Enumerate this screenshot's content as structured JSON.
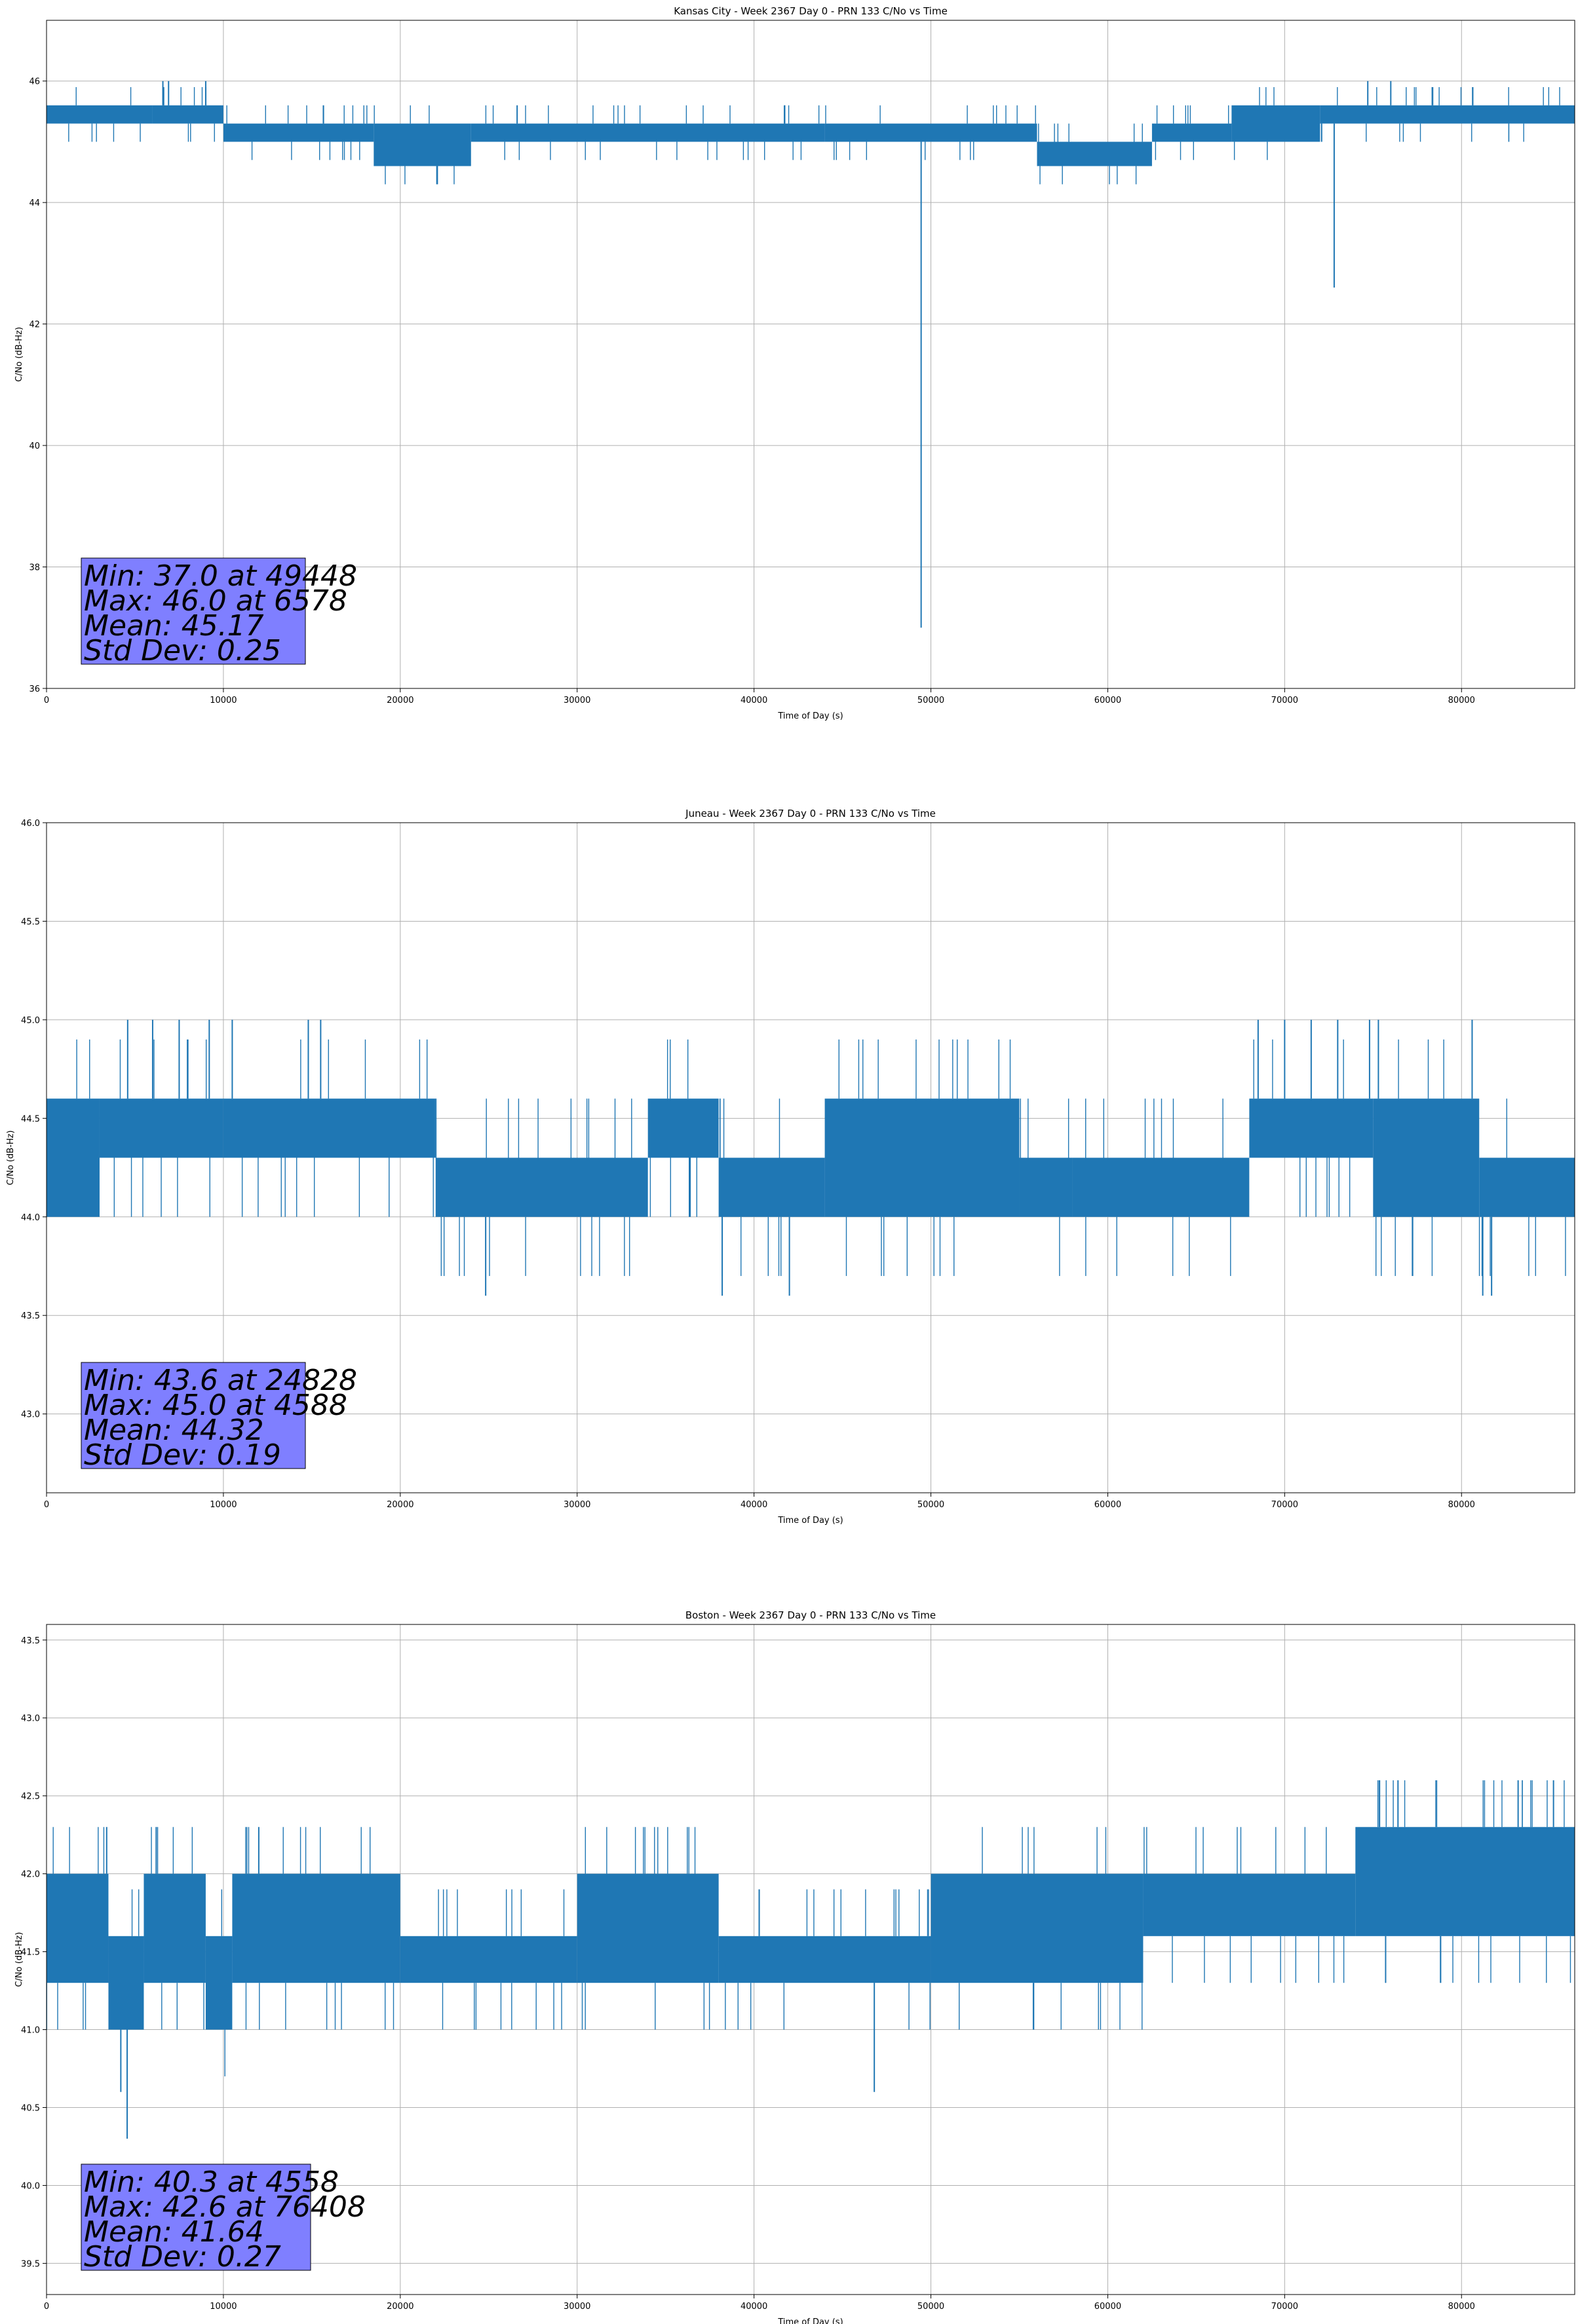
{
  "chart_data": [
    {
      "type": "line",
      "title": "Kansas City - Week 2367 Day 0 - PRN 133 C/No vs Time",
      "xlabel": "Time of Day (s)",
      "ylabel": "C/No (dB-Hz)",
      "xlim": [
        0,
        86400
      ],
      "ylim": [
        36,
        47
      ],
      "xticks": [
        0,
        10000,
        20000,
        30000,
        40000,
        50000,
        60000,
        70000,
        80000
      ],
      "yticks": [
        36,
        38,
        40,
        42,
        44,
        46
      ],
      "grid": true,
      "series_color": "#1f77b4",
      "series": [
        {
          "segments": [
            {
              "x": [
                0,
                6000
              ],
              "low": 45.3,
              "high": 45.6
            },
            {
              "x": [
                6000,
                10000
              ],
              "low": 45.3,
              "high": 45.6
            },
            {
              "x": [
                10000,
                18500
              ],
              "low": 45.0,
              "high": 45.3
            },
            {
              "x": [
                18500,
                24000
              ],
              "low": 44.6,
              "high": 45.3
            },
            {
              "x": [
                24000,
                44000
              ],
              "low": 45.0,
              "high": 45.3
            },
            {
              "x": [
                44000,
                56000
              ],
              "low": 45.0,
              "high": 45.3
            },
            {
              "x": [
                56000,
                62500
              ],
              "low": 44.6,
              "high": 45.0
            },
            {
              "x": [
                62500,
                67000
              ],
              "low": 45.0,
              "high": 45.3
            },
            {
              "x": [
                67000,
                72000
              ],
              "low": 45.0,
              "high": 45.6
            },
            {
              "x": [
                72000,
                86400
              ],
              "low": 45.3,
              "high": 45.6
            }
          ],
          "spikes": [
            {
              "x": 6578,
              "y": 46.0
            },
            {
              "x": 6900,
              "y": 46.0
            },
            {
              "x": 9000,
              "y": 46.0
            },
            {
              "x": 49448,
              "y": 37.0
            },
            {
              "x": 72800,
              "y": 42.6
            },
            {
              "x": 74700,
              "y": 46.0
            },
            {
              "x": 76000,
              "y": 46.0
            }
          ],
          "stats": {
            "min": {
              "value": 37.0,
              "at": 49448
            },
            "max": {
              "value": 46.0,
              "at": 6578
            },
            "mean": 45.17,
            "std": 0.25
          }
        }
      ],
      "stats_box": {
        "lines": [
          "Min: 37.0 at 49448",
          "Max: 46.0 at 6578",
          "Mean: 45.17",
          "Std Dev: 0.25"
        ],
        "color": "#7f7fff"
      }
    },
    {
      "type": "line",
      "title": "Juneau - Week 2367 Day 0 - PRN 133 C/No vs Time",
      "xlabel": "Time of Day (s)",
      "ylabel": "C/No (dB-Hz)",
      "xlim": [
        0,
        86400
      ],
      "ylim": [
        42.6,
        46.0
      ],
      "xticks": [
        0,
        10000,
        20000,
        30000,
        40000,
        50000,
        60000,
        70000,
        80000
      ],
      "yticks": [
        43.0,
        43.5,
        44.0,
        44.5,
        45.0,
        45.5,
        46.0
      ],
      "grid": true,
      "series_color": "#1f77b4",
      "series": [
        {
          "segments": [
            {
              "x": [
                0,
                3000
              ],
              "low": 44.0,
              "high": 44.6
            },
            {
              "x": [
                3000,
                10000
              ],
              "low": 44.3,
              "high": 44.6
            },
            {
              "x": [
                10000,
                22000
              ],
              "low": 44.3,
              "high": 44.6
            },
            {
              "x": [
                22000,
                34000
              ],
              "low": 44.0,
              "high": 44.3
            },
            {
              "x": [
                34000,
                38000
              ],
              "low": 44.3,
              "high": 44.6
            },
            {
              "x": [
                38000,
                44000
              ],
              "low": 44.0,
              "high": 44.3
            },
            {
              "x": [
                44000,
                55000
              ],
              "low": 44.0,
              "high": 44.6
            },
            {
              "x": [
                55000,
                58000
              ],
              "low": 44.0,
              "high": 44.3
            },
            {
              "x": [
                58000,
                68000
              ],
              "low": 44.0,
              "high": 44.3
            },
            {
              "x": [
                68000,
                75000
              ],
              "low": 44.3,
              "high": 44.6
            },
            {
              "x": [
                75000,
                81000
              ],
              "low": 44.0,
              "high": 44.6
            },
            {
              "x": [
                81000,
                86400
              ],
              "low": 44.0,
              "high": 44.3
            }
          ],
          "spikes": [
            {
              "x": 4588,
              "y": 45.0
            },
            {
              "x": 6000,
              "y": 45.0
            },
            {
              "x": 7500,
              "y": 45.0
            },
            {
              "x": 9200,
              "y": 45.0
            },
            {
              "x": 10500,
              "y": 45.0
            },
            {
              "x": 14800,
              "y": 45.0
            },
            {
              "x": 15500,
              "y": 45.0
            },
            {
              "x": 24828,
              "y": 43.6
            },
            {
              "x": 38200,
              "y": 43.6
            },
            {
              "x": 42000,
              "y": 43.6
            },
            {
              "x": 68500,
              "y": 45.0
            },
            {
              "x": 70000,
              "y": 45.0
            },
            {
              "x": 71500,
              "y": 45.0
            },
            {
              "x": 73000,
              "y": 45.0
            },
            {
              "x": 74800,
              "y": 45.0
            },
            {
              "x": 75300,
              "y": 45.0
            },
            {
              "x": 80600,
              "y": 45.0
            },
            {
              "x": 81200,
              "y": 43.6
            },
            {
              "x": 81700,
              "y": 43.6
            }
          ],
          "stats": {
            "min": {
              "value": 43.6,
              "at": 24828
            },
            "max": {
              "value": 45.0,
              "at": 4588
            },
            "mean": 44.32,
            "std": 0.19
          }
        }
      ],
      "stats_box": {
        "lines": [
          "Min: 43.6 at 24828",
          "Max: 45.0 at 4588",
          "Mean: 44.32",
          "Std Dev: 0.19"
        ],
        "color": "#7f7fff"
      }
    },
    {
      "type": "line",
      "title": "Boston - Week 2367 Day 0 - PRN 133 C/No vs Time",
      "xlabel": "Time of Day (s)",
      "ylabel": "C/No (dB-Hz)",
      "xlim": [
        0,
        86400
      ],
      "ylim": [
        39.3,
        43.6
      ],
      "xticks": [
        0,
        10000,
        20000,
        30000,
        40000,
        50000,
        60000,
        70000,
        80000
      ],
      "yticks": [
        39.5,
        40.0,
        40.5,
        41.0,
        41.5,
        42.0,
        42.5,
        43.0,
        43.5
      ],
      "grid": true,
      "series_color": "#1f77b4",
      "series": [
        {
          "segments": [
            {
              "x": [
                0,
                3500
              ],
              "low": 41.3,
              "high": 42.0
            },
            {
              "x": [
                3500,
                5500
              ],
              "low": 41.0,
              "high": 41.6
            },
            {
              "x": [
                5500,
                9000
              ],
              "low": 41.3,
              "high": 42.0
            },
            {
              "x": [
                9000,
                10500
              ],
              "low": 41.0,
              "high": 41.6
            },
            {
              "x": [
                10500,
                20000
              ],
              "low": 41.3,
              "high": 42.0
            },
            {
              "x": [
                20000,
                30000
              ],
              "low": 41.3,
              "high": 41.6
            },
            {
              "x": [
                30000,
                38000
              ],
              "low": 41.3,
              "high": 42.0
            },
            {
              "x": [
                38000,
                50000
              ],
              "low": 41.3,
              "high": 41.6
            },
            {
              "x": [
                50000,
                62000
              ],
              "low": 41.3,
              "high": 42.0
            },
            {
              "x": [
                62000,
                74000
              ],
              "low": 41.6,
              "high": 42.0
            },
            {
              "x": [
                74000,
                86400
              ],
              "low": 41.6,
              "high": 42.3
            }
          ],
          "spikes": [
            {
              "x": 3400,
              "y": 42.3
            },
            {
              "x": 4558,
              "y": 40.3
            },
            {
              "x": 4200,
              "y": 40.6
            },
            {
              "x": 6200,
              "y": 42.3
            },
            {
              "x": 12000,
              "y": 42.3
            },
            {
              "x": 46800,
              "y": 40.6
            },
            {
              "x": 76408,
              "y": 42.6
            },
            {
              "x": 83200,
              "y": 42.6
            },
            {
              "x": 85200,
              "y": 42.6
            }
          ],
          "stats": {
            "min": {
              "value": 40.3,
              "at": 4558
            },
            "max": {
              "value": 42.6,
              "at": 76408
            },
            "mean": 41.64,
            "std": 0.27
          }
        }
      ],
      "stats_box": {
        "lines": [
          "Min: 40.3 at 4558",
          "Max: 42.6 at 76408",
          "Mean: 41.64",
          "Std Dev: 0.27"
        ],
        "color": "#7f7fff"
      }
    }
  ]
}
